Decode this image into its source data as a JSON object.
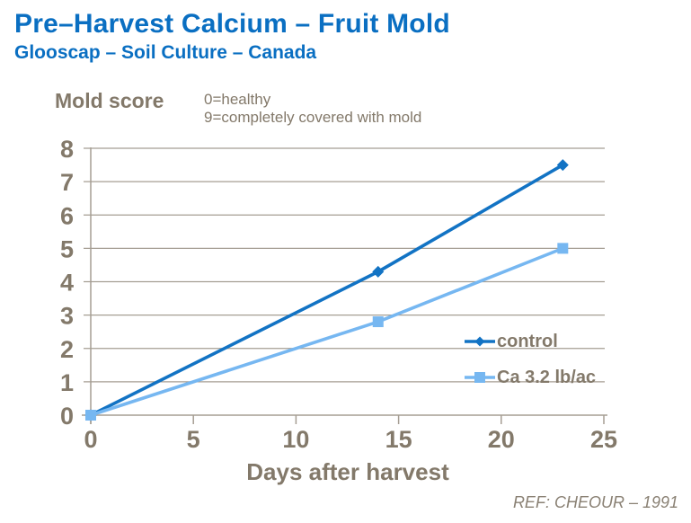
{
  "header": {
    "title": "Pre–Harvest Calcium – Fruit Mold",
    "subtitle": "Glooscap – Soil Culture – Canada"
  },
  "chart_data": {
    "type": "line",
    "title": "Pre–Harvest Calcium – Fruit Mold",
    "subtitle": "Glooscap – Soil Culture – Canada",
    "xlabel": "Days after harvest",
    "ylabel": "Mold score",
    "annotations": [
      "0=healthy",
      "9=completely covered with mold"
    ],
    "x": [
      0,
      14,
      23
    ],
    "series": [
      {
        "name": "control",
        "values": [
          0,
          4.3,
          7.5
        ],
        "color": "#1273C4",
        "marker": "diamond"
      },
      {
        "name": "Ca 3.2 lb/ac",
        "values": [
          0,
          2.8,
          5.0
        ],
        "color": "#76B7F1",
        "marker": "square"
      }
    ],
    "xlim": [
      0,
      25
    ],
    "ylim": [
      0,
      8
    ],
    "x_ticks": [
      0,
      5,
      10,
      15,
      20,
      25
    ],
    "y_ticks": [
      0,
      1,
      2,
      3,
      4,
      5,
      6,
      7,
      8
    ],
    "grid": "horizontal",
    "legend_position": "inside-right"
  },
  "footer": {
    "ref": "REF: CHEOUR – 1991"
  },
  "colors": {
    "title_blue": "#0A6FC2",
    "control_blue": "#1273C4",
    "ca_light_blue": "#76B7F1",
    "grid_gray": "#A59E93",
    "label_brown": "#83796A",
    "ref_gray": "#8A8174"
  }
}
